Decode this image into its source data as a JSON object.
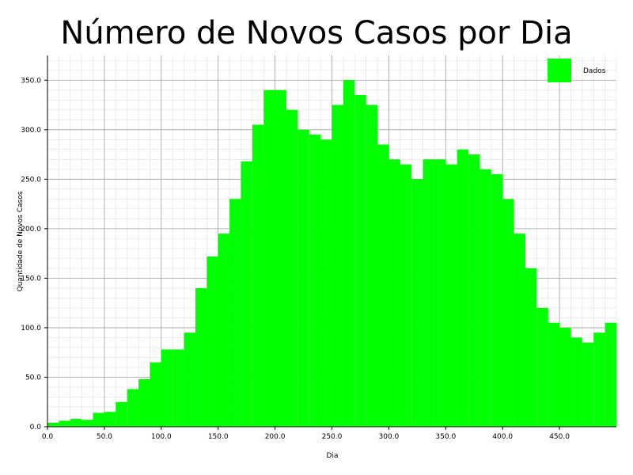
{
  "chart_data": {
    "type": "bar",
    "title": "Número de Novos Casos por Dia",
    "xlabel": "Dia",
    "ylabel": "Quantidade de Novos Casos",
    "xlim": [
      0,
      500
    ],
    "ylim": [
      0,
      375
    ],
    "x_ticks": [
      "0.0",
      "50.0",
      "100.0",
      "150.0",
      "200.0",
      "250.0",
      "300.0",
      "350.0",
      "400.0",
      "450.0"
    ],
    "y_ticks": [
      "0.0",
      "50.0",
      "100.0",
      "150.0",
      "200.0",
      "250.0",
      "300.0",
      "350.0"
    ],
    "grid": true,
    "legend": {
      "placement": "top-right",
      "entries": [
        "Dados"
      ]
    },
    "bar_color": "#00ff00",
    "series": [
      {
        "name": "Dados",
        "x_start": 0,
        "x_step": 10,
        "values": [
          4,
          6,
          8,
          7,
          14,
          15,
          25,
          38,
          48,
          65,
          78,
          78,
          95,
          140,
          172,
          195,
          230,
          268,
          305,
          340,
          340,
          320,
          300,
          295,
          290,
          325,
          350,
          335,
          325,
          285,
          270,
          265,
          250,
          270,
          270,
          265,
          280,
          275,
          260,
          255,
          230,
          195,
          160,
          120,
          105,
          100,
          90,
          85,
          95,
          105
        ]
      }
    ]
  }
}
